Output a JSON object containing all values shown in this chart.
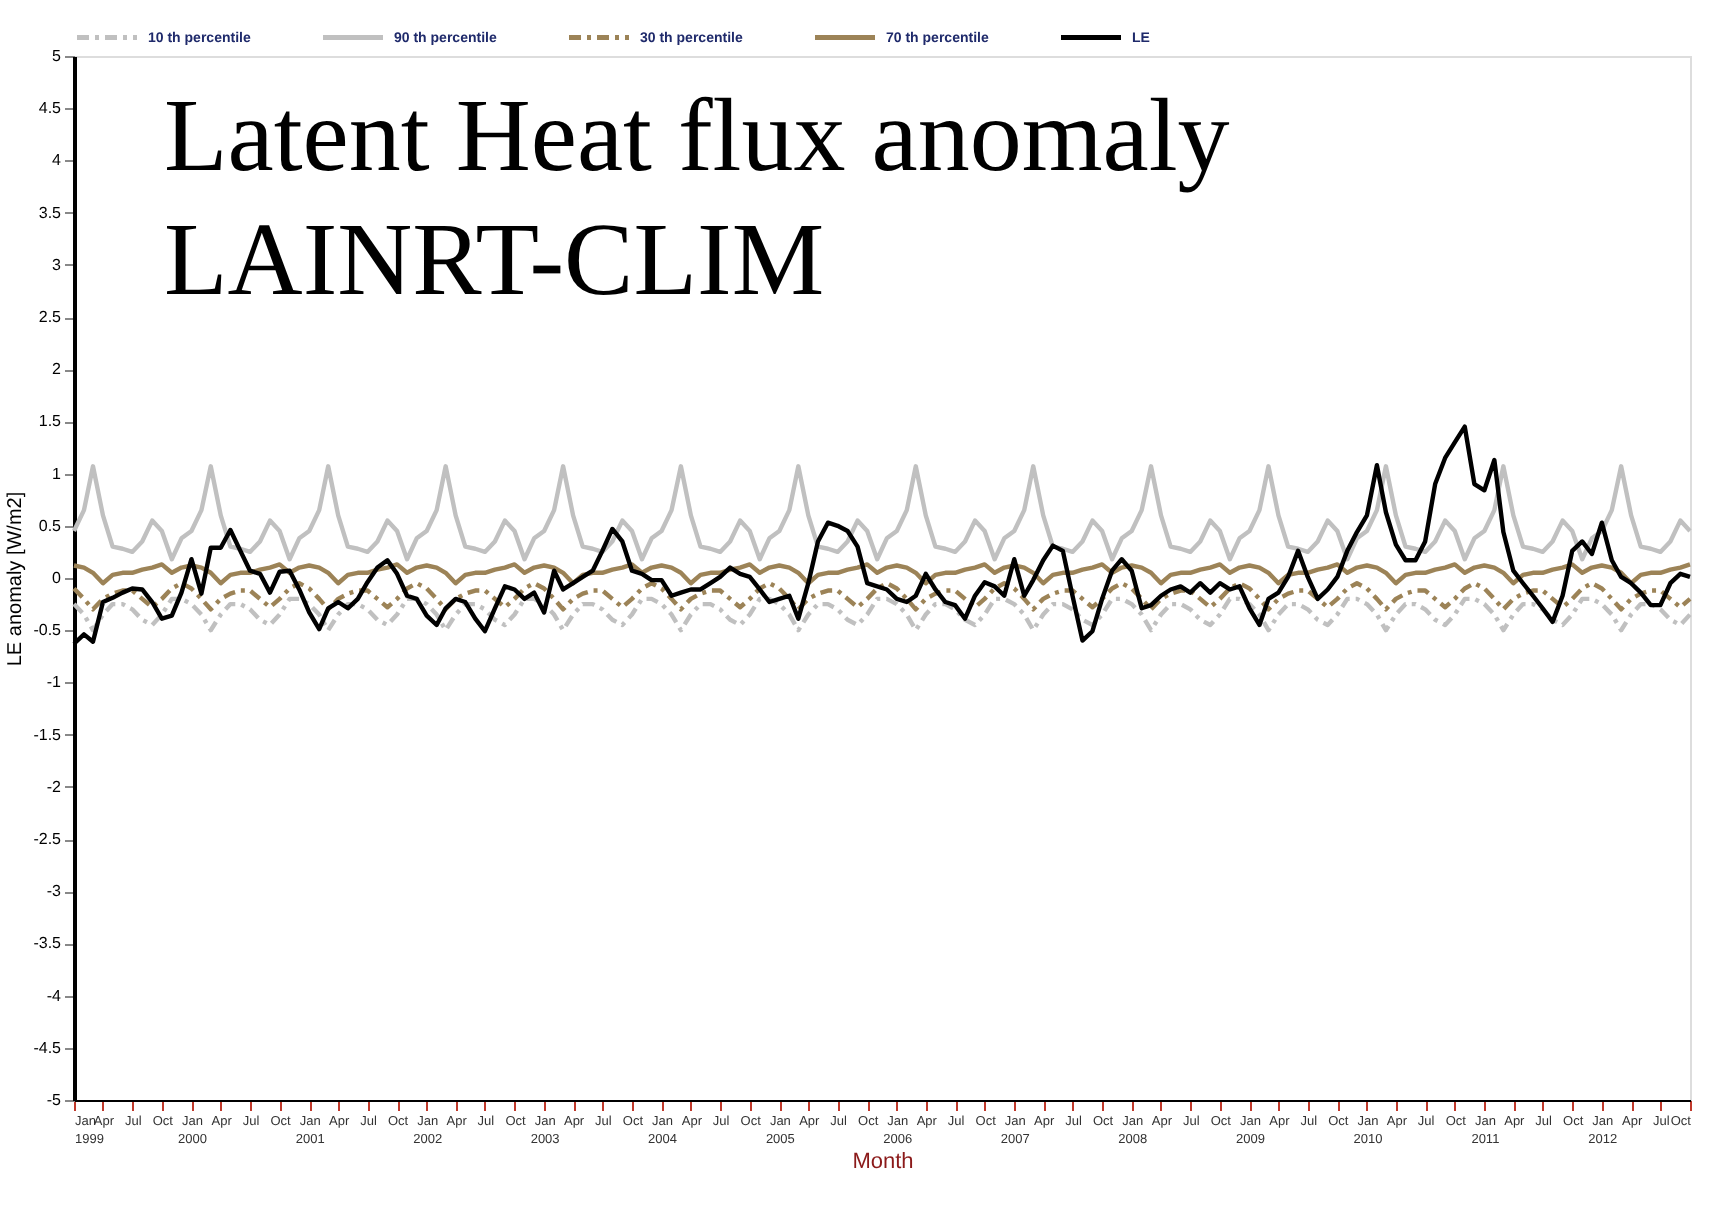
{
  "chart_data": {
    "type": "line",
    "title": "Latent Heat flux anomaly\nLAINRT-CLIM",
    "xlabel": "Month",
    "ylabel": "LE anomaly  [W/m2]",
    "x": [
      "1999-01",
      "1999-02",
      "1999-03",
      "1999-04",
      "1999-05",
      "1999-06",
      "1999-07",
      "1999-08",
      "1999-09",
      "1999-10",
      "1999-11",
      "1999-12",
      "2000-01",
      "2000-02",
      "2000-03",
      "2000-04",
      "2000-05",
      "2000-06",
      "2000-07",
      "2000-08",
      "2000-09",
      "2000-10",
      "2000-11",
      "2000-12",
      "2001-01",
      "2001-02",
      "2001-03",
      "2001-04",
      "2001-05",
      "2001-06",
      "2001-07",
      "2001-08",
      "2001-09",
      "2001-10",
      "2001-11",
      "2001-12",
      "2002-01",
      "2002-02",
      "2002-03",
      "2002-04",
      "2002-05",
      "2002-06",
      "2002-07",
      "2002-08",
      "2002-09",
      "2002-10",
      "2002-11",
      "2002-12",
      "2003-01",
      "2003-02",
      "2003-03",
      "2003-04",
      "2003-05",
      "2003-06",
      "2003-07",
      "2003-08",
      "2003-09",
      "2003-10",
      "2003-11",
      "2003-12",
      "2004-01",
      "2004-02",
      "2004-03",
      "2004-04",
      "2004-05",
      "2004-06",
      "2004-07",
      "2004-08",
      "2004-09",
      "2004-10",
      "2004-11",
      "2004-12",
      "2005-01",
      "2005-02",
      "2005-03",
      "2005-04",
      "2005-05",
      "2005-06",
      "2005-07",
      "2005-08",
      "2005-09",
      "2005-10",
      "2005-11",
      "2005-12",
      "2006-01",
      "2006-02",
      "2006-03",
      "2006-04",
      "2006-05",
      "2006-06",
      "2006-07",
      "2006-08",
      "2006-09",
      "2006-10",
      "2006-11",
      "2006-12",
      "2007-01",
      "2007-02",
      "2007-03",
      "2007-04",
      "2007-05",
      "2007-06",
      "2007-07",
      "2007-08",
      "2007-09",
      "2007-10",
      "2007-11",
      "2007-12",
      "2008-01",
      "2008-02",
      "2008-03",
      "2008-04",
      "2008-05",
      "2008-06",
      "2008-07",
      "2008-08",
      "2008-09",
      "2008-10",
      "2008-11",
      "2008-12",
      "2009-01",
      "2009-02",
      "2009-03",
      "2009-04",
      "2009-05",
      "2009-06",
      "2009-07",
      "2009-08",
      "2009-09",
      "2009-10",
      "2009-11",
      "2009-12",
      "2010-01",
      "2010-02",
      "2010-03",
      "2010-04",
      "2010-05",
      "2010-06",
      "2010-07",
      "2010-08",
      "2010-09",
      "2010-10",
      "2010-11",
      "2010-12",
      "2011-01",
      "2011-02",
      "2011-03",
      "2011-04",
      "2011-05",
      "2011-06",
      "2011-07",
      "2011-08",
      "2011-09",
      "2011-10",
      "2011-11",
      "2011-12",
      "2012-01",
      "2012-02",
      "2012-03",
      "2012-04",
      "2012-05",
      "2012-06",
      "2012-07",
      "2012-08",
      "2012-09",
      "2012-10"
    ],
    "xlim": [
      "1999-01",
      "2012-10"
    ],
    "xticks": [
      {
        "value": "1999-01",
        "label": "Jan 1999"
      },
      {
        "value": "1999-04",
        "label": "Apr"
      },
      {
        "value": "1999-07",
        "label": "Jul"
      },
      {
        "value": "1999-10",
        "label": "Oct"
      },
      {
        "value": "2000-01",
        "label": "Jan 2000"
      },
      {
        "value": "2000-04",
        "label": "Apr"
      },
      {
        "value": "2000-07",
        "label": "Jul"
      },
      {
        "value": "2000-10",
        "label": "Oct"
      },
      {
        "value": "2001-01",
        "label": "Jan 2001"
      },
      {
        "value": "2001-04",
        "label": "Apr"
      },
      {
        "value": "2001-07",
        "label": "Jul"
      },
      {
        "value": "2001-10",
        "label": "Oct"
      },
      {
        "value": "2002-01",
        "label": "Jan 2002"
      },
      {
        "value": "2002-04",
        "label": "Apr"
      },
      {
        "value": "2002-07",
        "label": "Jul"
      },
      {
        "value": "2002-10",
        "label": "Oct"
      },
      {
        "value": "2003-01",
        "label": "Jan 2003"
      },
      {
        "value": "2003-04",
        "label": "Apr"
      },
      {
        "value": "2003-07",
        "label": "Jul"
      },
      {
        "value": "2003-10",
        "label": "Oct"
      },
      {
        "value": "2004-01",
        "label": "Jan 2004"
      },
      {
        "value": "2004-04",
        "label": "Apr"
      },
      {
        "value": "2004-07",
        "label": "Jul"
      },
      {
        "value": "2004-10",
        "label": "Oct"
      },
      {
        "value": "2005-01",
        "label": "Jan 2005"
      },
      {
        "value": "2005-04",
        "label": "Apr"
      },
      {
        "value": "2005-07",
        "label": "Jul"
      },
      {
        "value": "2005-10",
        "label": "Oct"
      },
      {
        "value": "2006-01",
        "label": "Jan 2006"
      },
      {
        "value": "2006-04",
        "label": "Apr"
      },
      {
        "value": "2006-07",
        "label": "Jul"
      },
      {
        "value": "2006-10",
        "label": "Oct"
      },
      {
        "value": "2007-01",
        "label": "Jan 2007"
      },
      {
        "value": "2007-04",
        "label": "Apr"
      },
      {
        "value": "2007-07",
        "label": "Jul"
      },
      {
        "value": "2007-10",
        "label": "Oct"
      },
      {
        "value": "2008-01",
        "label": "Jan 2008"
      },
      {
        "value": "2008-04",
        "label": "Apr"
      },
      {
        "value": "2008-07",
        "label": "Jul"
      },
      {
        "value": "2008-10",
        "label": "Oct"
      },
      {
        "value": "2009-01",
        "label": "Jan 2009"
      },
      {
        "value": "2009-04",
        "label": "Apr"
      },
      {
        "value": "2009-07",
        "label": "Jul"
      },
      {
        "value": "2009-10",
        "label": "Oct"
      },
      {
        "value": "2010-01",
        "label": "Jan 2010"
      },
      {
        "value": "2010-04",
        "label": "Apr"
      },
      {
        "value": "2010-07",
        "label": "Jul"
      },
      {
        "value": "2010-10",
        "label": "Oct"
      },
      {
        "value": "2011-01",
        "label": "Jan 2011"
      },
      {
        "value": "2011-04",
        "label": "Apr"
      },
      {
        "value": "2011-07",
        "label": "Jul"
      },
      {
        "value": "2011-10",
        "label": "Oct"
      },
      {
        "value": "2012-01",
        "label": "Jan 2012"
      },
      {
        "value": "2012-04",
        "label": "Apr"
      },
      {
        "value": "2012-07",
        "label": "Jul"
      },
      {
        "value": "2012-10",
        "label": "Oct"
      }
    ],
    "ylim": [
      -5,
      5
    ],
    "yticks": [
      -5,
      -4.5,
      -4,
      -3.5,
      -3,
      -2.5,
      -2,
      -1.5,
      -1,
      -0.5,
      0,
      0.5,
      1,
      1.5,
      2,
      2.5,
      3,
      3.5,
      4,
      4.5,
      5
    ],
    "grid": false,
    "legend": "top",
    "series": [
      {
        "name": "10 th percentile",
        "color": "#c0c0c0",
        "line_style": "dashed",
        "values": [
          -0.25,
          -0.35,
          -0.5,
          -0.35,
          -0.25,
          -0.25,
          -0.3,
          -0.4,
          -0.45,
          -0.35,
          -0.2,
          -0.2,
          -0.25,
          -0.35,
          -0.5,
          -0.35,
          -0.25,
          -0.25,
          -0.3,
          -0.4,
          -0.45,
          -0.35,
          -0.2,
          -0.2,
          -0.25,
          -0.35,
          -0.5,
          -0.35,
          -0.25,
          -0.25,
          -0.3,
          -0.4,
          -0.45,
          -0.35,
          -0.2,
          -0.2,
          -0.25,
          -0.35,
          -0.5,
          -0.35,
          -0.25,
          -0.25,
          -0.3,
          -0.4,
          -0.45,
          -0.35,
          -0.2,
          -0.2,
          -0.25,
          -0.35,
          -0.5,
          -0.35,
          -0.25,
          -0.25,
          -0.3,
          -0.4,
          -0.45,
          -0.35,
          -0.2,
          -0.2,
          -0.25,
          -0.35,
          -0.5,
          -0.35,
          -0.25,
          -0.25,
          -0.3,
          -0.4,
          -0.45,
          -0.35,
          -0.2,
          -0.2,
          -0.25,
          -0.35,
          -0.5,
          -0.35,
          -0.25,
          -0.25,
          -0.3,
          -0.4,
          -0.45,
          -0.35,
          -0.2,
          -0.2,
          -0.25,
          -0.35,
          -0.5,
          -0.35,
          -0.25,
          -0.25,
          -0.3,
          -0.4,
          -0.45,
          -0.35,
          -0.2,
          -0.2,
          -0.25,
          -0.35,
          -0.5,
          -0.35,
          -0.25,
          -0.25,
          -0.3,
          -0.4,
          -0.45,
          -0.35,
          -0.2,
          -0.2,
          -0.25,
          -0.35,
          -0.5,
          -0.35,
          -0.25,
          -0.25,
          -0.3,
          -0.4,
          -0.45,
          -0.35,
          -0.2,
          -0.2,
          -0.25,
          -0.35,
          -0.5,
          -0.35,
          -0.25,
          -0.25,
          -0.3,
          -0.4,
          -0.45,
          -0.35,
          -0.2,
          -0.2,
          -0.25,
          -0.35,
          -0.5,
          -0.35,
          -0.25,
          -0.25,
          -0.3,
          -0.4,
          -0.45,
          -0.35,
          -0.2,
          -0.2,
          -0.25,
          -0.35,
          -0.5,
          -0.35,
          -0.25,
          -0.25,
          -0.3,
          -0.4,
          -0.45,
          -0.35,
          -0.2,
          -0.2,
          -0.25,
          -0.35,
          -0.5,
          -0.35,
          -0.25,
          -0.25,
          -0.3,
          -0.4,
          -0.45,
          -0.35
        ]
      },
      {
        "name": "90 th percentile",
        "color": "#c0c0c0",
        "line_style": "solid",
        "values": [
          0.45,
          0.65,
          1.07,
          0.6,
          0.3,
          0.28,
          0.25,
          0.35,
          0.55,
          0.45,
          0.18,
          0.38,
          0.45,
          0.65,
          1.07,
          0.6,
          0.3,
          0.28,
          0.25,
          0.35,
          0.55,
          0.45,
          0.18,
          0.38,
          0.45,
          0.65,
          1.07,
          0.6,
          0.3,
          0.28,
          0.25,
          0.35,
          0.55,
          0.45,
          0.18,
          0.38,
          0.45,
          0.65,
          1.07,
          0.6,
          0.3,
          0.28,
          0.25,
          0.35,
          0.55,
          0.45,
          0.18,
          0.38,
          0.45,
          0.65,
          1.07,
          0.6,
          0.3,
          0.28,
          0.25,
          0.35,
          0.55,
          0.45,
          0.18,
          0.38,
          0.45,
          0.65,
          1.07,
          0.6,
          0.3,
          0.28,
          0.25,
          0.35,
          0.55,
          0.45,
          0.18,
          0.38,
          0.45,
          0.65,
          1.07,
          0.6,
          0.3,
          0.28,
          0.25,
          0.35,
          0.55,
          0.45,
          0.18,
          0.38,
          0.45,
          0.65,
          1.07,
          0.6,
          0.3,
          0.28,
          0.25,
          0.35,
          0.55,
          0.45,
          0.18,
          0.38,
          0.45,
          0.65,
          1.07,
          0.6,
          0.3,
          0.28,
          0.25,
          0.35,
          0.55,
          0.45,
          0.18,
          0.38,
          0.45,
          0.65,
          1.07,
          0.6,
          0.3,
          0.28,
          0.25,
          0.35,
          0.55,
          0.45,
          0.18,
          0.38,
          0.45,
          0.65,
          1.07,
          0.6,
          0.3,
          0.28,
          0.25,
          0.35,
          0.55,
          0.45,
          0.18,
          0.38,
          0.45,
          0.65,
          1.07,
          0.6,
          0.3,
          0.28,
          0.25,
          0.35,
          0.55,
          0.45,
          0.18,
          0.38,
          0.45,
          0.65,
          1.07,
          0.6,
          0.3,
          0.28,
          0.25,
          0.35,
          0.55,
          0.45,
          0.18,
          0.38,
          0.45,
          0.65,
          1.07,
          0.6,
          0.3,
          0.28,
          0.25,
          0.35,
          0.55,
          0.45
        ]
      },
      {
        "name": "30 th percentile",
        "color": "#9c8357",
        "line_style": "dashed",
        "values": [
          -0.1,
          -0.2,
          -0.3,
          -0.2,
          -0.15,
          -0.12,
          -0.12,
          -0.2,
          -0.28,
          -0.2,
          -0.1,
          -0.05,
          -0.1,
          -0.2,
          -0.3,
          -0.2,
          -0.15,
          -0.12,
          -0.12,
          -0.2,
          -0.28,
          -0.2,
          -0.1,
          -0.05,
          -0.1,
          -0.2,
          -0.3,
          -0.2,
          -0.15,
          -0.12,
          -0.12,
          -0.2,
          -0.28,
          -0.2,
          -0.1,
          -0.05,
          -0.1,
          -0.2,
          -0.3,
          -0.2,
          -0.15,
          -0.12,
          -0.12,
          -0.2,
          -0.28,
          -0.2,
          -0.1,
          -0.05,
          -0.1,
          -0.2,
          -0.3,
          -0.2,
          -0.15,
          -0.12,
          -0.12,
          -0.2,
          -0.28,
          -0.2,
          -0.1,
          -0.05,
          -0.1,
          -0.2,
          -0.3,
          -0.2,
          -0.15,
          -0.12,
          -0.12,
          -0.2,
          -0.28,
          -0.2,
          -0.1,
          -0.05,
          -0.1,
          -0.2,
          -0.3,
          -0.2,
          -0.15,
          -0.12,
          -0.12,
          -0.2,
          -0.28,
          -0.2,
          -0.1,
          -0.05,
          -0.1,
          -0.2,
          -0.3,
          -0.2,
          -0.15,
          -0.12,
          -0.12,
          -0.2,
          -0.28,
          -0.2,
          -0.1,
          -0.05,
          -0.1,
          -0.2,
          -0.3,
          -0.2,
          -0.15,
          -0.12,
          -0.12,
          -0.2,
          -0.28,
          -0.2,
          -0.1,
          -0.05,
          -0.1,
          -0.2,
          -0.3,
          -0.2,
          -0.15,
          -0.12,
          -0.12,
          -0.2,
          -0.28,
          -0.2,
          -0.1,
          -0.05,
          -0.1,
          -0.2,
          -0.3,
          -0.2,
          -0.15,
          -0.12,
          -0.12,
          -0.2,
          -0.28,
          -0.2,
          -0.1,
          -0.05,
          -0.1,
          -0.2,
          -0.3,
          -0.2,
          -0.15,
          -0.12,
          -0.12,
          -0.2,
          -0.28,
          -0.2,
          -0.1,
          -0.05,
          -0.1,
          -0.2,
          -0.3,
          -0.2,
          -0.15,
          -0.12,
          -0.12,
          -0.2,
          -0.28,
          -0.2,
          -0.1,
          -0.05,
          -0.1,
          -0.2,
          -0.3,
          -0.2,
          -0.15,
          -0.12,
          -0.12,
          -0.2,
          -0.28,
          -0.2
        ]
      },
      {
        "name": "70 th percentile",
        "color": "#9c8357",
        "line_style": "solid",
        "values": [
          0.12,
          0.1,
          0.05,
          -0.05,
          0.03,
          0.05,
          0.05,
          0.08,
          0.1,
          0.13,
          0.05,
          0.1,
          0.12,
          0.1,
          0.05,
          -0.05,
          0.03,
          0.05,
          0.05,
          0.08,
          0.1,
          0.13,
          0.05,
          0.1,
          0.12,
          0.1,
          0.05,
          -0.05,
          0.03,
          0.05,
          0.05,
          0.08,
          0.1,
          0.13,
          0.05,
          0.1,
          0.12,
          0.1,
          0.05,
          -0.05,
          0.03,
          0.05,
          0.05,
          0.08,
          0.1,
          0.13,
          0.05,
          0.1,
          0.12,
          0.1,
          0.05,
          -0.05,
          0.03,
          0.05,
          0.05,
          0.08,
          0.1,
          0.13,
          0.05,
          0.1,
          0.12,
          0.1,
          0.05,
          -0.05,
          0.03,
          0.05,
          0.05,
          0.08,
          0.1,
          0.13,
          0.05,
          0.1,
          0.12,
          0.1,
          0.05,
          -0.05,
          0.03,
          0.05,
          0.05,
          0.08,
          0.1,
          0.13,
          0.05,
          0.1,
          0.12,
          0.1,
          0.05,
          -0.05,
          0.03,
          0.05,
          0.05,
          0.08,
          0.1,
          0.13,
          0.05,
          0.1,
          0.12,
          0.1,
          0.05,
          -0.05,
          0.03,
          0.05,
          0.05,
          0.08,
          0.1,
          0.13,
          0.05,
          0.1,
          0.12,
          0.1,
          0.05,
          -0.05,
          0.03,
          0.05,
          0.05,
          0.08,
          0.1,
          0.13,
          0.05,
          0.1,
          0.12,
          0.1,
          0.05,
          -0.05,
          0.03,
          0.05,
          0.05,
          0.08,
          0.1,
          0.13,
          0.05,
          0.1,
          0.12,
          0.1,
          0.05,
          -0.05,
          0.03,
          0.05,
          0.05,
          0.08,
          0.1,
          0.13,
          0.05,
          0.1,
          0.12,
          0.1,
          0.05,
          -0.05,
          0.03,
          0.05,
          0.05,
          0.08,
          0.1,
          0.13,
          0.05,
          0.1,
          0.12,
          0.1,
          0.05,
          -0.05,
          0.03,
          0.05,
          0.05,
          0.08,
          0.1,
          0.13
        ]
      },
      {
        "name": "LE",
        "color": "#000000",
        "line_style": "solid",
        "values": [
          -0.63,
          -0.54,
          -0.61,
          -0.23,
          -0.19,
          -0.14,
          -0.1,
          -0.11,
          -0.23,
          -0.39,
          -0.36,
          -0.14,
          0.18,
          -0.15,
          0.29,
          0.29,
          0.46,
          0.26,
          0.07,
          0.04,
          -0.14,
          0.06,
          0.07,
          -0.11,
          -0.33,
          -0.49,
          -0.29,
          -0.23,
          -0.29,
          -0.2,
          -0.04,
          0.1,
          0.17,
          0.04,
          -0.17,
          -0.2,
          -0.36,
          -0.45,
          -0.29,
          -0.2,
          -0.23,
          -0.39,
          -0.51,
          -0.29,
          -0.08,
          -0.11,
          -0.2,
          -0.14,
          -0.33,
          0.07,
          -0.11,
          -0.05,
          0.01,
          0.07,
          0.26,
          0.47,
          0.35,
          0.07,
          0.04,
          -0.02,
          -0.02,
          -0.17,
          -0.14,
          -0.11,
          -0.11,
          -0.05,
          0.01,
          0.1,
          0.04,
          0.01,
          -0.11,
          -0.23,
          -0.2,
          -0.17,
          -0.39,
          -0.05,
          0.35,
          0.53,
          0.5,
          0.45,
          0.3,
          -0.05,
          -0.08,
          -0.11,
          -0.2,
          -0.23,
          -0.17,
          0.04,
          -0.11,
          -0.23,
          -0.26,
          -0.39,
          -0.17,
          -0.04,
          -0.08,
          -0.17,
          0.18,
          -0.17,
          -0.02,
          0.17,
          0.31,
          0.26,
          -0.17,
          -0.6,
          -0.51,
          -0.2,
          0.07,
          0.18,
          0.07,
          -0.29,
          -0.26,
          -0.17,
          -0.11,
          -0.08,
          -0.14,
          -0.05,
          -0.14,
          -0.05,
          -0.11,
          -0.08,
          -0.29,
          -0.45,
          -0.2,
          -0.14,
          0.01,
          0.26,
          0.01,
          -0.2,
          -0.11,
          0.01,
          0.26,
          0.44,
          0.6,
          1.08,
          0.63,
          0.32,
          0.17,
          0.17,
          0.35,
          0.9,
          1.15,
          1.3,
          1.45,
          0.9,
          0.84,
          1.13,
          0.44,
          0.07,
          -0.05,
          -0.17,
          -0.29,
          -0.42,
          -0.17,
          0.26,
          0.35,
          0.23,
          0.53,
          0.17,
          0.01,
          -0.05,
          -0.14,
          -0.26,
          -0.26,
          -0.05,
          0.04,
          0.01
        ]
      }
    ]
  }
}
